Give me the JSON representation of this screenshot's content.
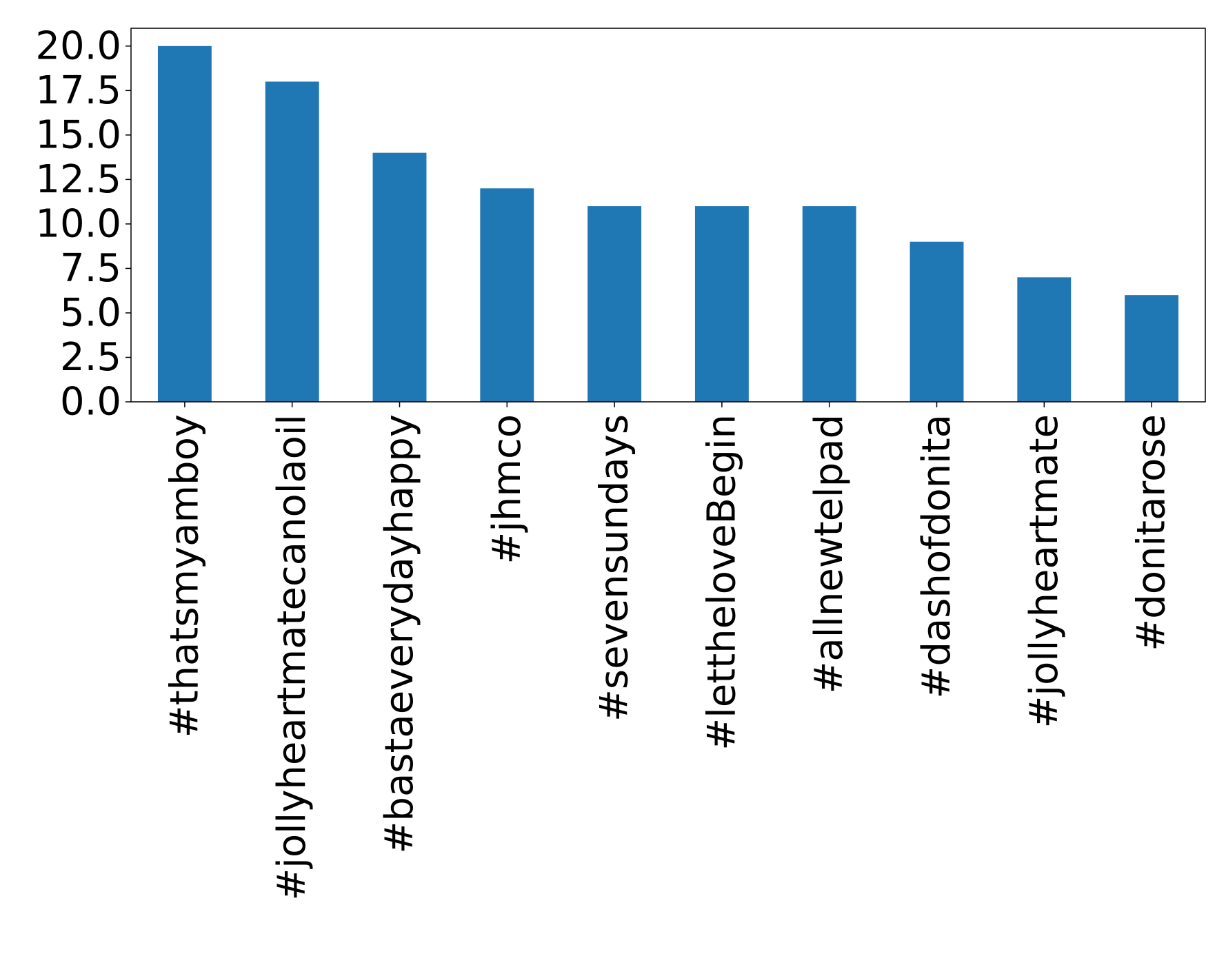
{
  "chart_data": {
    "type": "bar",
    "title": "",
    "xlabel": "",
    "ylabel": "",
    "categories": [
      "#thatsmyamboy",
      "#jollyheartmatecanolaoil",
      "#bastaeverydayhappy",
      "#jhmco",
      "#sevensundays",
      "#lettheloveBegin",
      "#allnewtelpad",
      "#dashofdonita",
      "#jollyheartmate",
      "#donitarose"
    ],
    "values": [
      20,
      18,
      14,
      12,
      11,
      11,
      11,
      9,
      7,
      6
    ],
    "ylim": [
      0,
      21
    ],
    "yticks": [
      "0.0",
      "2.5",
      "5.0",
      "7.5",
      "10.0",
      "12.5",
      "15.0",
      "17.5",
      "20.0"
    ],
    "grid": false,
    "legend": "none",
    "bar_color": "#1f77b4"
  }
}
